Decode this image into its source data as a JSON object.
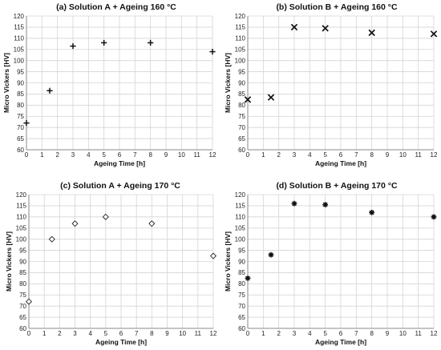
{
  "chart_data": [
    {
      "type": "scatter",
      "title": "(a) Solution A + Ageing 160 °C",
      "xlabel": "Ageing Time [h]",
      "ylabel": "Micro Vickers [HV]",
      "xlim": [
        0,
        12
      ],
      "ylim": [
        60,
        120
      ],
      "xticks": [
        "0",
        "1",
        "2",
        "3",
        "4",
        "5",
        "6",
        "7",
        "8",
        "9",
        "10",
        "11",
        "12"
      ],
      "yticks": [
        "60",
        "65",
        "70",
        "75",
        "80",
        "85",
        "90",
        "95",
        "100",
        "105",
        "110",
        "115",
        "120"
      ],
      "marker": "plus",
      "grid": true,
      "series": [
        {
          "x": [
            0,
            1.5,
            3,
            5,
            8,
            12
          ],
          "y": [
            72,
            86.5,
            106.5,
            108,
            108,
            104
          ]
        }
      ]
    },
    {
      "type": "scatter",
      "title": "(b) Solution B + Ageing 160 °C",
      "xlabel": "Ageing Time [h]",
      "ylabel": "Micro Vickers [HV]",
      "xlim": [
        0,
        12
      ],
      "ylim": [
        60,
        120
      ],
      "xticks": [
        "0",
        "1",
        "2",
        "3",
        "4",
        "5",
        "6",
        "7",
        "8",
        "9",
        "10",
        "11",
        "12"
      ],
      "yticks": [
        "60",
        "65",
        "70",
        "75",
        "80",
        "85",
        "90",
        "95",
        "100",
        "105",
        "110",
        "115",
        "120"
      ],
      "marker": "cross",
      "grid": true,
      "series": [
        {
          "x": [
            0,
            1.5,
            3,
            5,
            8,
            12
          ],
          "y": [
            82.5,
            83.5,
            115,
            114.5,
            112.5,
            112
          ]
        }
      ]
    },
    {
      "type": "scatter",
      "title": "(c) Solution A + Ageing 170 °C",
      "xlabel": "Ageing Time [h]",
      "ylabel": "Micro Vickers [HV]",
      "xlim": [
        0,
        12
      ],
      "ylim": [
        60,
        120
      ],
      "xticks": [
        "0",
        "1",
        "2",
        "3",
        "4",
        "5",
        "6",
        "7",
        "8",
        "9",
        "10",
        "11",
        "12"
      ],
      "yticks": [
        "60",
        "65",
        "70",
        "75",
        "80",
        "85",
        "90",
        "95",
        "100",
        "105",
        "110",
        "115",
        "120"
      ],
      "marker": "diamond",
      "grid": true,
      "series": [
        {
          "x": [
            0,
            1.5,
            3,
            5,
            8,
            12
          ],
          "y": [
            72,
            100,
            107,
            110,
            107,
            92.5
          ]
        }
      ]
    },
    {
      "type": "scatter",
      "title": "(d) Solution B + Ageing 170 °C",
      "xlabel": "Ageing Time [h]",
      "ylabel": "Micro Vickers [HV]",
      "xlim": [
        0,
        12
      ],
      "ylim": [
        60,
        120
      ],
      "xticks": [
        "0",
        "1",
        "2",
        "3",
        "4",
        "5",
        "6",
        "7",
        "8",
        "9",
        "10",
        "11",
        "12"
      ],
      "yticks": [
        "60",
        "65",
        "70",
        "75",
        "80",
        "85",
        "90",
        "95",
        "100",
        "105",
        "110",
        "115",
        "120"
      ],
      "marker": "asterisk",
      "grid": true,
      "series": [
        {
          "x": [
            0,
            1.5,
            3,
            5,
            8,
            12
          ],
          "y": [
            82.5,
            93,
            116,
            115.5,
            112,
            110
          ]
        }
      ]
    }
  ]
}
